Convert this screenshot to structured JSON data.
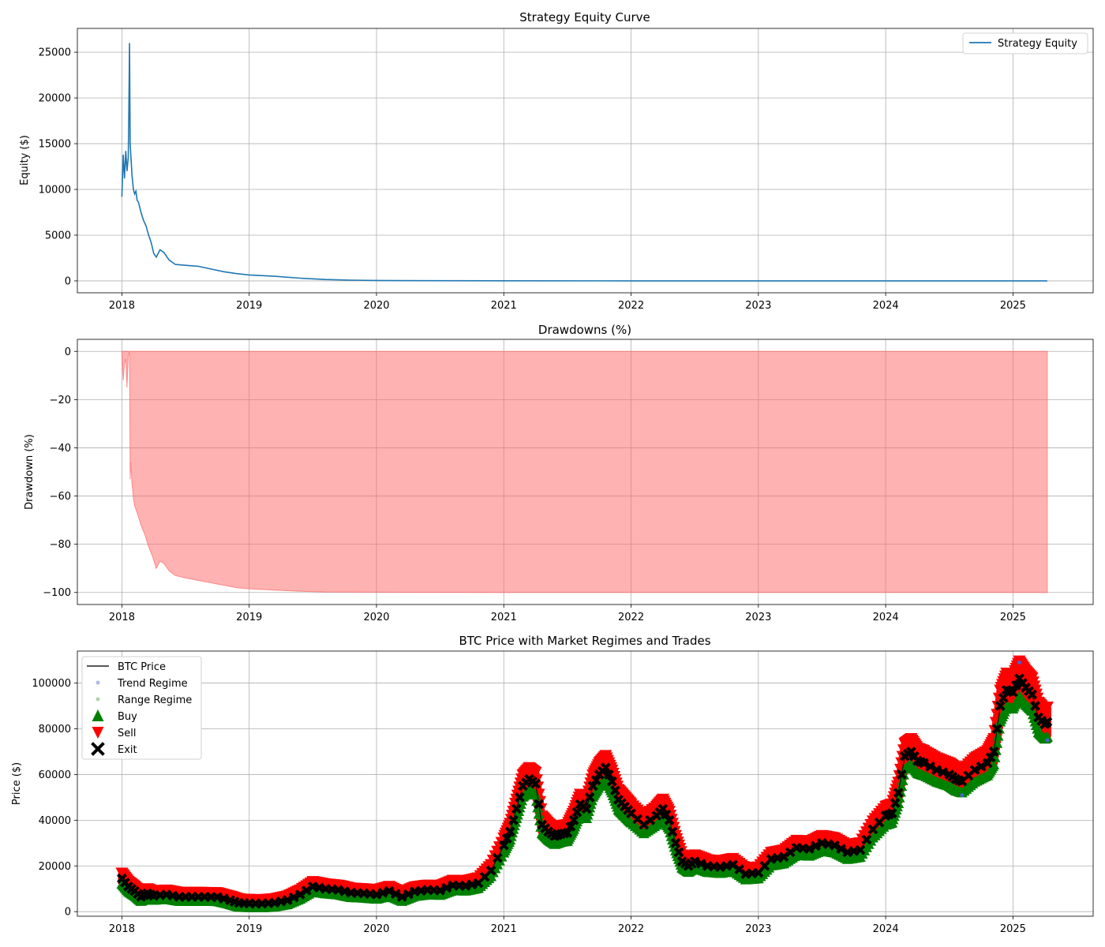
{
  "chart_data": [
    {
      "type": "line",
      "title": "Strategy Equity Curve",
      "xlabel": "",
      "ylabel": "Equity ($)",
      "xlim": [
        2017.65,
        2025.63
      ],
      "ylim": [
        -1300,
        27600
      ],
      "x_ticks": [
        "2018",
        "2019",
        "2020",
        "2021",
        "2022",
        "2023",
        "2024",
        "2025"
      ],
      "y_ticks": [
        0,
        5000,
        10000,
        15000,
        20000,
        25000
      ],
      "grid": true,
      "legend": {
        "placement": "top-right",
        "entries": [
          "Strategy Equity"
        ]
      },
      "series": [
        {
          "name": "Strategy Equity",
          "color": "#1f77b4",
          "x": [
            2018.0,
            2018.01,
            2018.02,
            2018.03,
            2018.04,
            2018.05,
            2018.055,
            2018.06,
            2018.065,
            2018.07,
            2018.08,
            2018.09,
            2018.1,
            2018.11,
            2018.12,
            2018.13,
            2018.15,
            2018.17,
            2018.19,
            2018.21,
            2018.23,
            2018.25,
            2018.27,
            2018.3,
            2018.33,
            2018.37,
            2018.42,
            2018.5,
            2018.6,
            2018.7,
            2018.8,
            2018.9,
            2019.0,
            2019.2,
            2019.4,
            2019.6,
            2019.8,
            2020.0,
            2020.5,
            2021.0,
            2022.0,
            2023.0,
            2024.0,
            2025.0,
            2025.27
          ],
          "y": [
            9200,
            13800,
            11200,
            14200,
            12000,
            13500,
            19000,
            26000,
            15000,
            13800,
            11500,
            10000,
            9500,
            9800,
            8800,
            8600,
            7500,
            6600,
            6000,
            5000,
            4200,
            3000,
            2600,
            3400,
            3100,
            2300,
            1800,
            1700,
            1600,
            1300,
            1000,
            800,
            650,
            500,
            300,
            150,
            80,
            50,
            20,
            8,
            3,
            1,
            0.5,
            0.2,
            0.1
          ]
        }
      ]
    },
    {
      "type": "area",
      "title": "Drawdowns (%)",
      "xlabel": "",
      "ylabel": "Drawdown (%)",
      "xlim": [
        2017.65,
        2025.63
      ],
      "ylim": [
        -105,
        5
      ],
      "x_ticks": [
        "2018",
        "2019",
        "2020",
        "2021",
        "2022",
        "2023",
        "2024",
        "2025"
      ],
      "y_ticks": [
        0,
        -20,
        -40,
        -60,
        -80,
        -100
      ],
      "y_tick_labels": [
        "0",
        "−20",
        "−40",
        "−60",
        "−80",
        "−100"
      ],
      "grid": true,
      "series": [
        {
          "name": "",
          "color": "#ff6666",
          "x": [
            2018.0,
            2018.01,
            2018.02,
            2018.03,
            2018.04,
            2018.05,
            2018.06,
            2018.065,
            2018.07,
            2018.08,
            2018.09,
            2018.1,
            2018.12,
            2018.15,
            2018.18,
            2018.21,
            2018.24,
            2018.27,
            2018.3,
            2018.33,
            2018.37,
            2018.42,
            2018.5,
            2018.6,
            2018.7,
            2018.8,
            2018.9,
            2019.0,
            2019.2,
            2019.4,
            2019.6,
            2020.0,
            2021.0,
            2022.0,
            2023.0,
            2024.0,
            2025.0,
            2025.27
          ],
          "y": [
            0,
            -12,
            -5,
            -3,
            -15,
            -2,
            0,
            -53,
            -46,
            -55,
            -61,
            -64,
            -67,
            -72,
            -76,
            -81,
            -85,
            -90,
            -87,
            -88,
            -91,
            -93,
            -94,
            -95,
            -96,
            -97,
            -98,
            -98.5,
            -99,
            -99.5,
            -99.8,
            -99.9,
            -100,
            -100,
            -100,
            -100,
            -100,
            -100
          ]
        }
      ]
    },
    {
      "type": "scatter",
      "title": "BTC Price with Market Regimes and Trades",
      "xlabel": "",
      "ylabel": "Price ($)",
      "xlim": [
        2017.65,
        2025.63
      ],
      "ylim": [
        -2000,
        114000
      ],
      "x_ticks": [
        "2018",
        "2019",
        "2020",
        "2021",
        "2022",
        "2023",
        "2024",
        "2025"
      ],
      "y_ticks": [
        0,
        20000,
        40000,
        60000,
        80000,
        100000
      ],
      "grid": true,
      "legend": {
        "placement": "top-left",
        "entries": [
          "BTC Price",
          "Trend Regime",
          "Range Regime",
          "Buy",
          "Sell",
          "Exit"
        ]
      },
      "series": [
        {
          "name": "BTC Price",
          "color": "#000000",
          "x": [
            2018.0,
            2018.05,
            2018.1,
            2018.15,
            2018.2,
            2018.25,
            2018.35,
            2018.45,
            2018.55,
            2018.65,
            2018.75,
            2018.85,
            2018.92,
            2019.0,
            2019.1,
            2019.2,
            2019.3,
            2019.4,
            2019.5,
            2019.6,
            2019.7,
            2019.8,
            2019.9,
            2020.0,
            2020.1,
            2020.2,
            2020.3,
            2020.4,
            2020.5,
            2020.6,
            2020.7,
            2020.8,
            2020.9,
            2021.0,
            2021.05,
            2021.1,
            2021.15,
            2021.2,
            2021.25,
            2021.3,
            2021.35,
            2021.4,
            2021.45,
            2021.5,
            2021.55,
            2021.6,
            2021.65,
            2021.7,
            2021.75,
            2021.8,
            2021.85,
            2021.9,
            2021.95,
            2022.0,
            2022.1,
            2022.2,
            2022.25,
            2022.3,
            2022.35,
            2022.4,
            2022.45,
            2022.5,
            2022.6,
            2022.7,
            2022.8,
            2022.9,
            2023.0,
            2023.1,
            2023.2,
            2023.3,
            2023.4,
            2023.5,
            2023.6,
            2023.7,
            2023.8,
            2023.9,
            2024.0,
            2024.05,
            2024.1,
            2024.15,
            2024.2,
            2024.25,
            2024.3,
            2024.4,
            2024.5,
            2024.55,
            2024.6,
            2024.7,
            2024.8,
            2024.85,
            2024.9,
            2024.95,
            2025.0,
            2025.05,
            2025.1,
            2025.15,
            2025.2,
            2025.25,
            2025.27
          ],
          "y": [
            14500,
            11000,
            9000,
            6500,
            8000,
            7000,
            7500,
            6500,
            6500,
            6500,
            6400,
            5000,
            3800,
            3600,
            3500,
            3900,
            5000,
            7500,
            11000,
            10000,
            9500,
            8300,
            8000,
            7500,
            9000,
            6500,
            8800,
            9500,
            9300,
            11500,
            11300,
            12500,
            18000,
            29000,
            35000,
            45000,
            55000,
            58000,
            56000,
            38000,
            35000,
            33000,
            34000,
            34500,
            40000,
            47000,
            45000,
            55000,
            60000,
            63000,
            57000,
            49000,
            46000,
            43000,
            38000,
            42000,
            45000,
            40000,
            30000,
            22000,
            20000,
            22000,
            20000,
            19500,
            20500,
            16500,
            17000,
            23000,
            24000,
            28000,
            27500,
            30000,
            29000,
            26000,
            27000,
            36000,
            42000,
            43000,
            52000,
            68000,
            70000,
            66000,
            65000,
            62000,
            60000,
            58000,
            57000,
            62000,
            65000,
            70000,
            90000,
            97000,
            96000,
            102000,
            98000,
            95000,
            85000,
            82000,
            83000
          ]
        }
      ],
      "regime_colors": {
        "trend": "#4a63c8",
        "range": "#66b366"
      },
      "marker_colors": {
        "buy": "#008000",
        "sell": "#ff0000",
        "exit": "#000000"
      }
    }
  ]
}
